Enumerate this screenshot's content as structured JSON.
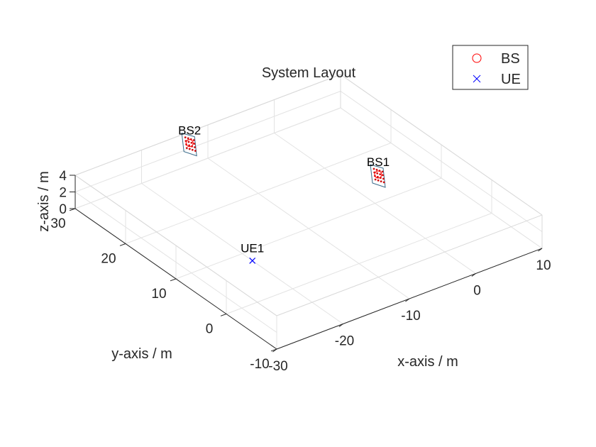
{
  "chart_data": {
    "type": "scatter",
    "title": "System Layout",
    "xlabel": "x-axis / m",
    "ylabel": "y-axis / m",
    "zlabel": "z-axis / m",
    "xlim": [
      -30,
      10
    ],
    "ylim": [
      -10,
      30
    ],
    "zlim": [
      0,
      4
    ],
    "xticks": [
      "-30",
      "-20",
      "-10",
      "0",
      "10"
    ],
    "yticks": [
      "-10",
      "0",
      "10",
      "20",
      "30"
    ],
    "zticks": [
      "0",
      "2",
      "4"
    ],
    "grid": true,
    "legend_position": "top-right",
    "series": [
      {
        "name": "BS",
        "marker": "circle",
        "color": "#ff0000",
        "points": [
          {
            "label": "BS1",
            "x": 2,
            "y": 12,
            "z": 2
          },
          {
            "label": "BS2",
            "x": -12,
            "y": 31,
            "z": 2
          }
        ]
      },
      {
        "name": "UE",
        "marker": "x",
        "color": "#0000ff",
        "points": [
          {
            "label": "UE1",
            "x": -20,
            "y": 8,
            "z": 0
          }
        ]
      }
    ]
  }
}
